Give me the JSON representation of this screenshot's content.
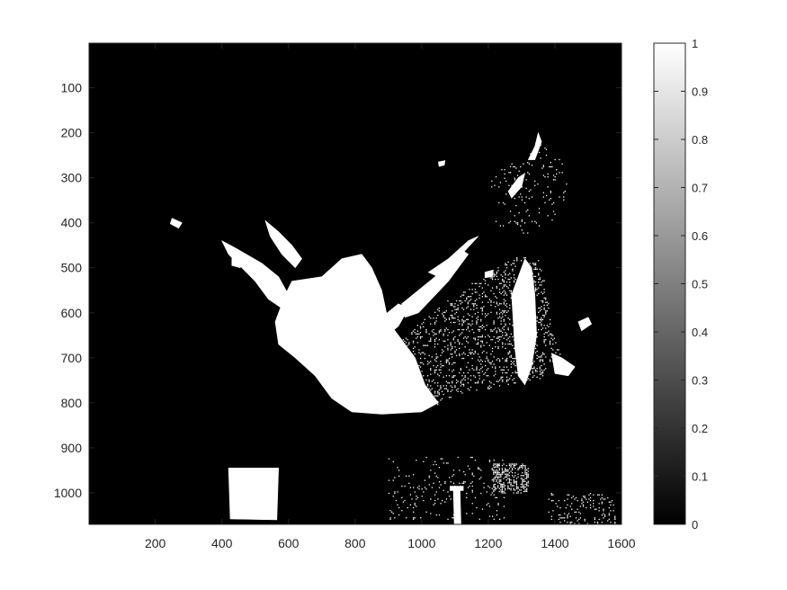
{
  "chart_data": {
    "type": "heatmap",
    "title": "",
    "xlabel": "",
    "ylabel": "",
    "colormap": "gray",
    "image_size": {
      "width": 1600,
      "height": 1070
    },
    "xlim": [
      1,
      1600
    ],
    "ylim": [
      1,
      1070
    ],
    "y_reversed": true,
    "x_ticks": [
      200,
      400,
      600,
      800,
      1000,
      1200,
      1400,
      1600
    ],
    "x_tick_labels": [
      "200",
      "400",
      "600",
      "800",
      "1000",
      "1200",
      "1400",
      "1600"
    ],
    "y_ticks": [
      100,
      200,
      300,
      400,
      500,
      600,
      700,
      800,
      900,
      1000
    ],
    "y_tick_labels": [
      "100",
      "200",
      "300",
      "400",
      "500",
      "600",
      "700",
      "800",
      "900",
      "1000"
    ],
    "colorbar": {
      "range": [
        0,
        1
      ],
      "ticks": [
        0,
        0.1,
        0.2,
        0.3,
        0.4,
        0.5,
        0.6,
        0.7,
        0.8,
        0.9,
        1
      ],
      "tick_labels": [
        "0",
        "0.1",
        "0.2",
        "0.3",
        "0.4",
        "0.5",
        "0.6",
        "0.7",
        "0.8",
        "0.9",
        "1"
      ]
    },
    "bright_regions": [
      {
        "name": "central-snowfield",
        "value": 1,
        "points": [
          [
            610,
            530
          ],
          [
            700,
            520
          ],
          [
            760,
            480
          ],
          [
            820,
            470
          ],
          [
            850,
            500
          ],
          [
            880,
            550
          ],
          [
            900,
            620
          ],
          [
            940,
            660
          ],
          [
            980,
            700
          ],
          [
            1010,
            760
          ],
          [
            1050,
            800
          ],
          [
            1000,
            820
          ],
          [
            880,
            825
          ],
          [
            790,
            820
          ],
          [
            730,
            790
          ],
          [
            680,
            740
          ],
          [
            620,
            700
          ],
          [
            570,
            670
          ],
          [
            560,
            620
          ],
          [
            590,
            560
          ]
        ]
      },
      {
        "name": "left-ridge-streak",
        "value": 1,
        "points": [
          [
            400,
            440
          ],
          [
            450,
            460
          ],
          [
            520,
            490
          ],
          [
            570,
            520
          ],
          [
            600,
            560
          ],
          [
            580,
            590
          ],
          [
            540,
            570
          ],
          [
            500,
            530
          ],
          [
            460,
            500
          ],
          [
            420,
            470
          ]
        ]
      },
      {
        "name": "left-ridge-upper",
        "value": 1,
        "points": [
          [
            530,
            395
          ],
          [
            570,
            420
          ],
          [
            610,
            450
          ],
          [
            640,
            480
          ],
          [
            620,
            500
          ],
          [
            580,
            470
          ],
          [
            545,
            430
          ]
        ]
      },
      {
        "name": "left-edge-fleck",
        "value": 1,
        "points": [
          [
            250,
            390
          ],
          [
            280,
            400
          ],
          [
            270,
            412
          ],
          [
            245,
            402
          ]
        ]
      },
      {
        "name": "left-patch",
        "value": 1,
        "points": [
          [
            430,
            460
          ],
          [
            460,
            470
          ],
          [
            455,
            500
          ],
          [
            430,
            495
          ]
        ]
      },
      {
        "name": "middle-ledge",
        "value": 1,
        "points": [
          [
            820,
            630
          ],
          [
            880,
            610
          ],
          [
            930,
            580
          ],
          [
            960,
            590
          ],
          [
            930,
            630
          ],
          [
            880,
            660
          ],
          [
            830,
            665
          ]
        ]
      },
      {
        "name": "right-slope-band",
        "value": 1,
        "points": [
          [
            940,
            580
          ],
          [
            1040,
            520
          ],
          [
            1120,
            460
          ],
          [
            1140,
            470
          ],
          [
            1080,
            530
          ],
          [
            990,
            600
          ],
          [
            950,
            610
          ]
        ]
      },
      {
        "name": "upper-ridge-tongue",
        "value": 1,
        "points": [
          [
            1020,
            510
          ],
          [
            1080,
            480
          ],
          [
            1140,
            440
          ],
          [
            1170,
            430
          ],
          [
            1120,
            470
          ],
          [
            1050,
            520
          ]
        ]
      },
      {
        "name": "upper-right-streak",
        "value": 1,
        "points": [
          [
            1260,
            330
          ],
          [
            1290,
            300
          ],
          [
            1310,
            290
          ],
          [
            1300,
            320
          ],
          [
            1270,
            345
          ]
        ]
      },
      {
        "name": "upper-right-tip",
        "value": 1,
        "points": [
          [
            1320,
            260
          ],
          [
            1340,
            230
          ],
          [
            1350,
            200
          ],
          [
            1360,
            220
          ],
          [
            1340,
            260
          ]
        ]
      },
      {
        "name": "right-cliff-band",
        "value": 1,
        "points": [
          [
            1270,
            560
          ],
          [
            1290,
            520
          ],
          [
            1310,
            480
          ],
          [
            1330,
            500
          ],
          [
            1340,
            560
          ],
          [
            1345,
            650
          ],
          [
            1330,
            720
          ],
          [
            1310,
            760
          ],
          [
            1290,
            740
          ],
          [
            1280,
            680
          ]
        ]
      },
      {
        "name": "right-lower-patch",
        "value": 1,
        "points": [
          [
            1390,
            690
          ],
          [
            1420,
            700
          ],
          [
            1460,
            720
          ],
          [
            1440,
            740
          ],
          [
            1400,
            735
          ]
        ]
      },
      {
        "name": "right-knob",
        "value": 1,
        "points": [
          [
            1470,
            620
          ],
          [
            1500,
            610
          ],
          [
            1510,
            625
          ],
          [
            1480,
            640
          ]
        ]
      },
      {
        "name": "top-center-fleck",
        "value": 1,
        "points": [
          [
            1050,
            265
          ],
          [
            1070,
            262
          ],
          [
            1068,
            272
          ],
          [
            1052,
            275
          ]
        ]
      },
      {
        "name": "right-mid-fleck",
        "value": 1,
        "points": [
          [
            1190,
            510
          ],
          [
            1215,
            505
          ],
          [
            1212,
            520
          ],
          [
            1190,
            522
          ]
        ]
      },
      {
        "name": "signboard",
        "value": 1,
        "points": [
          [
            420,
            945
          ],
          [
            570,
            945
          ],
          [
            565,
            1060
          ],
          [
            425,
            1058
          ]
        ]
      },
      {
        "name": "post",
        "value": 1,
        "points": [
          [
            1095,
            990
          ],
          [
            1115,
            990
          ],
          [
            1118,
            1070
          ],
          [
            1098,
            1070
          ]
        ]
      },
      {
        "name": "post-cap",
        "value": 1,
        "points": [
          [
            1085,
            985
          ],
          [
            1125,
            985
          ],
          [
            1125,
            995
          ],
          [
            1085,
            995
          ]
        ]
      }
    ],
    "speckle_regions": [
      {
        "name": "right-slope-speckle",
        "value": 1,
        "density": 0.16,
        "points": [
          [
            930,
            660
          ],
          [
            1030,
            600
          ],
          [
            1130,
            540
          ],
          [
            1220,
            500
          ],
          [
            1300,
            470
          ],
          [
            1350,
            480
          ],
          [
            1380,
            560
          ],
          [
            1390,
            640
          ],
          [
            1420,
            700
          ],
          [
            1350,
            750
          ],
          [
            1250,
            760
          ],
          [
            1120,
            780
          ],
          [
            1040,
            805
          ],
          [
            980,
            760
          ]
        ]
      },
      {
        "name": "upper-right-speckle",
        "value": 1,
        "density": 0.05,
        "points": [
          [
            1200,
            300
          ],
          [
            1300,
            250
          ],
          [
            1360,
            220
          ],
          [
            1420,
            260
          ],
          [
            1440,
            330
          ],
          [
            1400,
            400
          ],
          [
            1300,
            430
          ],
          [
            1220,
            400
          ]
        ]
      },
      {
        "name": "windows-speckle",
        "value": 1,
        "density": 0.42,
        "points": [
          [
            1210,
            935
          ],
          [
            1320,
            935
          ],
          [
            1320,
            1000
          ],
          [
            1210,
            1000
          ]
        ]
      },
      {
        "name": "bottom-right-speckle",
        "value": 1,
        "density": 0.12,
        "points": [
          [
            1380,
            1000
          ],
          [
            1580,
            1000
          ],
          [
            1580,
            1070
          ],
          [
            1380,
            1070
          ]
        ]
      },
      {
        "name": "bottom-middle-speckle",
        "value": 1,
        "density": 0.05,
        "points": [
          [
            900,
            920
          ],
          [
            1250,
            920
          ],
          [
            1250,
            1060
          ],
          [
            900,
            1060
          ]
        ]
      }
    ]
  }
}
